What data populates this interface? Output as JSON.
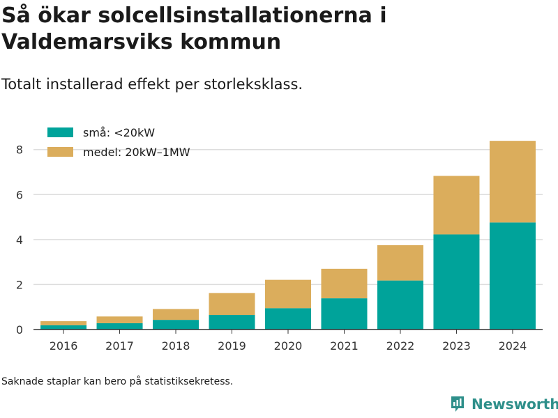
{
  "title": "Så ökar solcellsinstallationerna i Valdemarsviks kommun",
  "subtitle": "Totalt installerad effekt per storleksklass.",
  "footnote": "Saknade staplar kan bero på statistiksekretess.",
  "brand": {
    "name": "Newsworthy",
    "icon": "newsworthy-logo-icon",
    "color": "#2e8f8a"
  },
  "chart_data": {
    "type": "bar",
    "stacked": true,
    "categories": [
      "2016",
      "2017",
      "2018",
      "2019",
      "2020",
      "2021",
      "2022",
      "2023",
      "2024"
    ],
    "series": [
      {
        "name": "små: <20kW",
        "color": "#00a39a",
        "values": [
          0.19,
          0.28,
          0.43,
          0.65,
          0.95,
          1.39,
          2.18,
          4.23,
          4.76
        ]
      },
      {
        "name": "medel: 20kW–1MW",
        "color": "#dbad5c",
        "values": [
          0.18,
          0.3,
          0.48,
          0.97,
          1.26,
          1.31,
          1.57,
          2.6,
          3.63
        ]
      }
    ],
    "y_ticks": [
      0,
      2,
      4,
      6,
      8
    ],
    "ylim": [
      0,
      9.2
    ],
    "grid": true,
    "legend_position": "top-left",
    "xlabel": "",
    "ylabel": ""
  }
}
